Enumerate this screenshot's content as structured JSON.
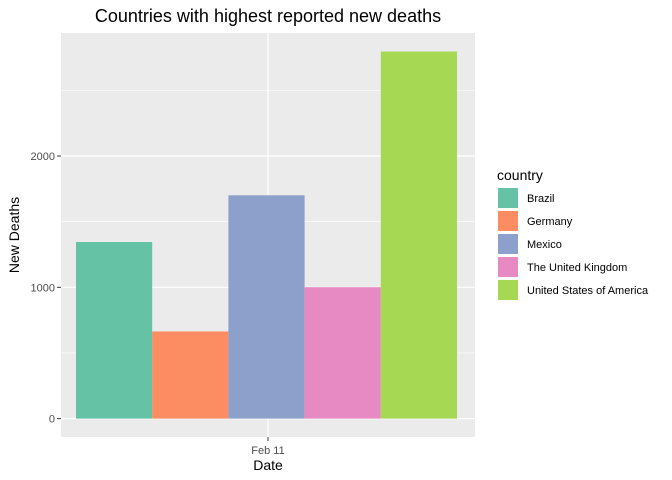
{
  "chart_data": {
    "type": "bar",
    "title": "Countries with highest reported new deaths",
    "xlabel": "Date",
    "ylabel": "New Deaths",
    "categories": [
      "Feb 11"
    ],
    "series": [
      {
        "name": "Brazil",
        "values": [
          1345
        ],
        "color": "#66C2A5"
      },
      {
        "name": "Germany",
        "values": [
          664
        ],
        "color": "#FC8D62"
      },
      {
        "name": "Mexico",
        "values": [
          1701
        ],
        "color": "#8DA0CB"
      },
      {
        "name": "The United Kingdom",
        "values": [
          1001
        ],
        "color": "#E78AC3"
      },
      {
        "name": "United States of America",
        "values": [
          2796
        ],
        "color": "#A6D854"
      }
    ],
    "ylim": [
      -140,
      2937
    ],
    "yticks": [
      0,
      1000,
      2000
    ],
    "ytick_labels": [
      "0",
      "1000",
      "2000"
    ],
    "grid": true,
    "legend": {
      "title": "country",
      "position": "right"
    }
  }
}
